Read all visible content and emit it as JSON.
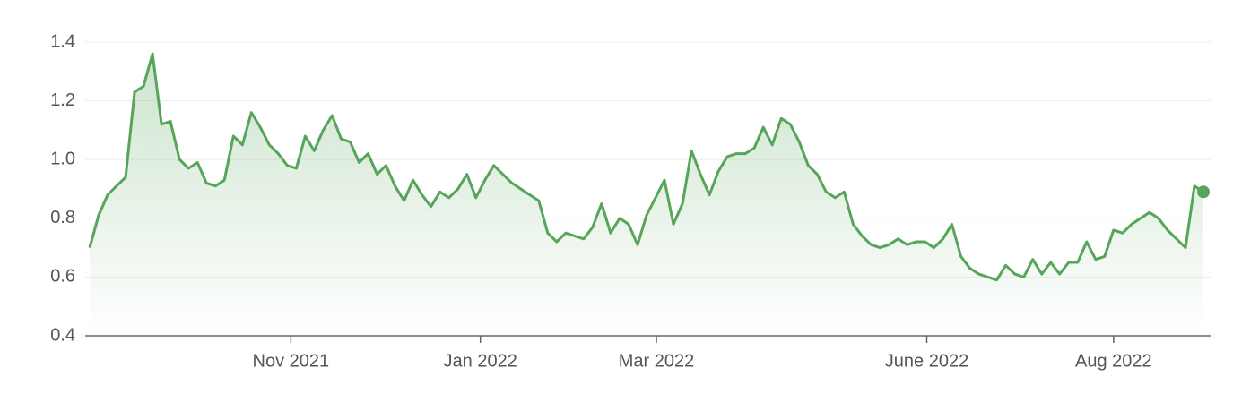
{
  "chart_data": {
    "type": "line",
    "color": "#57a55a",
    "grid": true,
    "values": [
      0.7,
      0.81,
      0.88,
      0.91,
      0.94,
      1.23,
      1.25,
      1.36,
      1.12,
      1.13,
      1.0,
      0.97,
      0.99,
      0.92,
      0.91,
      0.93,
      1.08,
      1.05,
      1.16,
      1.11,
      1.05,
      1.02,
      0.98,
      0.97,
      1.08,
      1.03,
      1.1,
      1.15,
      1.07,
      1.06,
      0.99,
      1.02,
      0.95,
      0.98,
      0.91,
      0.86,
      0.93,
      0.88,
      0.84,
      0.89,
      0.87,
      0.9,
      0.95,
      0.87,
      0.93,
      0.98,
      0.95,
      0.92,
      0.9,
      0.88,
      0.86,
      0.75,
      0.72,
      0.75,
      0.74,
      0.73,
      0.77,
      0.85,
      0.75,
      0.8,
      0.78,
      0.71,
      0.81,
      0.87,
      0.93,
      0.78,
      0.85,
      1.03,
      0.95,
      0.88,
      0.96,
      1.01,
      1.02,
      1.02,
      1.04,
      1.11,
      1.05,
      1.14,
      1.12,
      1.06,
      0.98,
      0.95,
      0.89,
      0.87,
      0.89,
      0.78,
      0.74,
      0.71,
      0.7,
      0.71,
      0.73,
      0.71,
      0.72,
      0.72,
      0.7,
      0.73,
      0.78,
      0.67,
      0.63,
      0.61,
      0.6,
      0.59,
      0.64,
      0.61,
      0.6,
      0.66,
      0.61,
      0.65,
      0.61,
      0.65,
      0.65,
      0.72,
      0.66,
      0.67,
      0.76,
      0.75,
      0.78,
      0.8,
      0.82,
      0.8,
      0.76,
      0.73,
      0.7,
      0.91,
      0.89
    ],
    "xlim": [
      0,
      124
    ],
    "xticks": [
      {
        "value": 22.4,
        "label": "Nov 2021"
      },
      {
        "value": 43.5,
        "label": "Jan 2022"
      },
      {
        "value": 63.1,
        "label": "Mar 2022"
      },
      {
        "value": 93.2,
        "label": "June 2022"
      },
      {
        "value": 114.0,
        "label": "Aug 2022"
      }
    ],
    "ylim": [
      0.4,
      1.4
    ],
    "yticks": [
      0.4,
      0.6,
      0.8,
      {
        "value": 1,
        "label": "1.0"
      },
      1.2,
      1.4
    ]
  }
}
